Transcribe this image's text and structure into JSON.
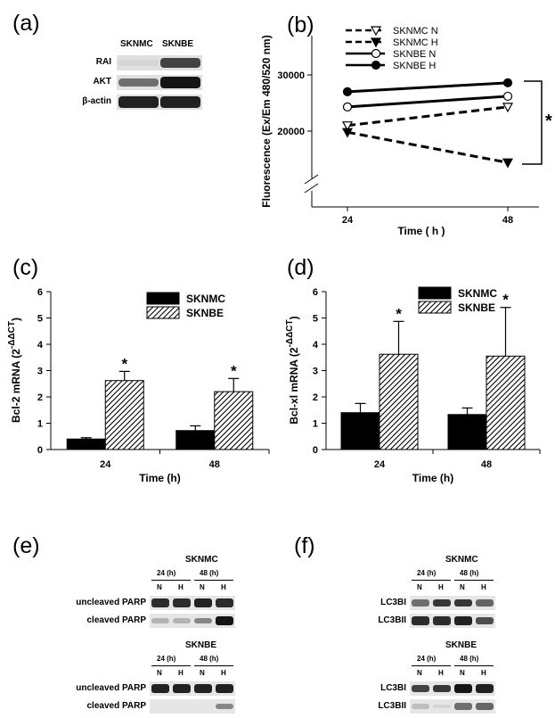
{
  "panels": {
    "a": {
      "label": "(a)",
      "columns": [
        "SKNMC",
        "SKNBE"
      ],
      "rows": [
        "RAI",
        "AKT",
        "β-actin"
      ],
      "band_intensity": {
        "RAI": [
          0.1,
          0.75
        ],
        "AKT": [
          0.55,
          0.95
        ],
        "β-actin": [
          0.9,
          0.9
        ]
      }
    },
    "e": {
      "label": "(e)",
      "blots": [
        {
          "title": "SKNMC",
          "timepoints": [
            "24 (h)",
            "48 (h)"
          ],
          "lanes": [
            "N",
            "H",
            "N",
            "H"
          ],
          "rows": [
            "uncleaved PARP",
            "cleaved PARP"
          ],
          "band_intensity": {
            "uncleaved PARP": [
              0.85,
              0.85,
              0.9,
              0.85
            ],
            "cleaved PARP": [
              0.25,
              0.25,
              0.45,
              0.95
            ]
          }
        },
        {
          "title": "SKNBE",
          "timepoints": [
            "24 (h)",
            "48 (h)"
          ],
          "lanes": [
            "N",
            "H",
            "N",
            "H"
          ],
          "rows": [
            "uncleaved PARP",
            "cleaved PARP"
          ],
          "band_intensity": {
            "uncleaved PARP": [
              0.9,
              0.9,
              0.9,
              0.9
            ],
            "cleaved PARP": [
              0.0,
              0.0,
              0.0,
              0.45
            ]
          }
        }
      ]
    },
    "f": {
      "label": "(f)",
      "blots": [
        {
          "title": "SKNMC",
          "timepoints": [
            "24 (h)",
            "48 (h)"
          ],
          "lanes": [
            "N",
            "H",
            "N",
            "H"
          ],
          "rows": [
            "LC3BI",
            "LC3BII"
          ],
          "band_intensity": {
            "LC3BI": [
              0.55,
              0.8,
              0.8,
              0.6
            ],
            "LC3BII": [
              0.85,
              0.85,
              0.9,
              0.7
            ]
          }
        },
        {
          "title": "SKNBE",
          "timepoints": [
            "24 (h)",
            "48 (h)"
          ],
          "lanes": [
            "N",
            "H",
            "N",
            "H"
          ],
          "rows": [
            "LC3BI",
            "LC3BII"
          ],
          "band_intensity": {
            "LC3BI": [
              0.75,
              0.8,
              0.95,
              0.9
            ],
            "LC3BII": [
              0.2,
              0.1,
              0.55,
              0.6
            ]
          }
        }
      ]
    }
  },
  "chart_data": [
    {
      "panel": "(b)",
      "type": "line",
      "title": "",
      "xlabel": "Time ( h )",
      "ylabel": "Fluorescence (Ex/Em 480/520 nm)",
      "x": [
        24,
        48
      ],
      "x_ticks": [
        "24",
        "48"
      ],
      "y_ticks": [
        "20000",
        "30000"
      ],
      "ylim": [
        14000,
        32000
      ],
      "axis_break": true,
      "legend_position": "top-left",
      "significance": "*",
      "series": [
        {
          "name": "SKNMC N",
          "values": [
            21000,
            24300
          ],
          "dashed": true,
          "marker": "triangle-down-open"
        },
        {
          "name": "SKNMC H",
          "values": [
            19800,
            14400
          ],
          "dashed": true,
          "marker": "triangle-down-filled"
        },
        {
          "name": "SKNBE N",
          "values": [
            24300,
            26200
          ],
          "dashed": false,
          "marker": "circle-open"
        },
        {
          "name": "SKNBE H",
          "values": [
            27000,
            28600
          ],
          "dashed": false,
          "marker": "circle-filled"
        }
      ]
    },
    {
      "panel": "(c)",
      "type": "bar",
      "title": "",
      "xlabel": "Time (h)",
      "ylabel": "Bcl-2 mRNA (2",
      "ylabel_sup": "-ΔΔCT",
      "ylabel_close": ")",
      "categories": [
        "24",
        "48"
      ],
      "ylim": [
        0,
        6
      ],
      "y_ticks": [
        "0",
        "1",
        "2",
        "3",
        "4",
        "5",
        "6"
      ],
      "legend_position": "top-right",
      "series": [
        {
          "name": "SKNMC",
          "values": [
            0.4,
            0.72
          ],
          "errors": [
            0.05,
            0.18
          ],
          "fill": "solid",
          "sig": [
            "",
            ""
          ]
        },
        {
          "name": "SKNBE",
          "values": [
            2.62,
            2.2
          ],
          "errors": [
            0.35,
            0.5
          ],
          "fill": "hatch",
          "sig": [
            "*",
            "*"
          ]
        }
      ]
    },
    {
      "panel": "(d)",
      "type": "bar",
      "title": "",
      "xlabel": "Time (h)",
      "ylabel": "Bcl-xl mRNA (2",
      "ylabel_sup": "-ΔΔCT",
      "ylabel_close": ")",
      "categories": [
        "24",
        "48"
      ],
      "ylim": [
        0,
        6
      ],
      "y_ticks": [
        "0",
        "1",
        "2",
        "3",
        "4",
        "5",
        "6"
      ],
      "legend_position": "top-right",
      "series": [
        {
          "name": "SKNMC",
          "values": [
            1.4,
            1.33
          ],
          "errors": [
            0.35,
            0.25
          ],
          "fill": "solid",
          "sig": [
            "",
            ""
          ]
        },
        {
          "name": "SKNBE",
          "values": [
            3.62,
            3.55
          ],
          "errors": [
            1.25,
            1.85
          ],
          "fill": "hatch",
          "sig": [
            "*",
            "*"
          ]
        }
      ]
    }
  ]
}
